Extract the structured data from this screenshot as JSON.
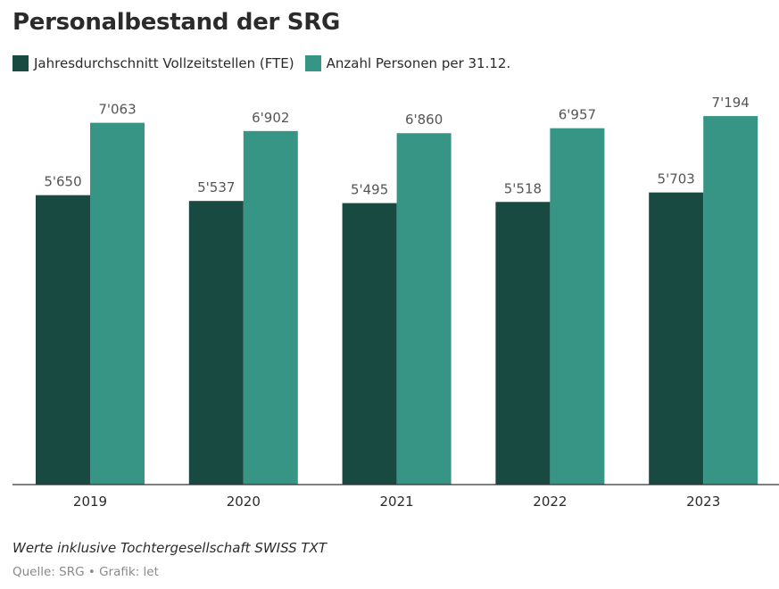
{
  "title": "Personalbestand der SRG",
  "legend": [
    {
      "label": "Jahresdurchschnitt Vollzeitstellen (FTE)",
      "color": "#184a42"
    },
    {
      "label": "Anzahl Personen per 31.12.",
      "color": "#379585"
    }
  ],
  "chart_data": {
    "type": "bar",
    "title": "Personalbestand der SRG",
    "xlabel": "",
    "ylabel": "",
    "ylim": [
      0,
      7700
    ],
    "categories": [
      "2019",
      "2020",
      "2021",
      "2022",
      "2023"
    ],
    "series": [
      {
        "name": "Jahresdurchschnitt Vollzeitstellen (FTE)",
        "color": "#184a42",
        "values": [
          5650,
          5537,
          5495,
          5518,
          5703
        ],
        "labels": [
          "5'650",
          "5'537",
          "5'495",
          "5'518",
          "5'703"
        ]
      },
      {
        "name": "Anzahl Personen per 31.12.",
        "color": "#379585",
        "values": [
          7063,
          6902,
          6860,
          6957,
          7194
        ],
        "labels": [
          "7'063",
          "6'902",
          "6'860",
          "6'957",
          "7'194"
        ]
      }
    ],
    "grid": false,
    "legend_position": "top-left"
  },
  "note": "Werte inklusive Tochtergesellschaft SWISS TXT",
  "source": "Quelle: SRG • Grafik: let"
}
